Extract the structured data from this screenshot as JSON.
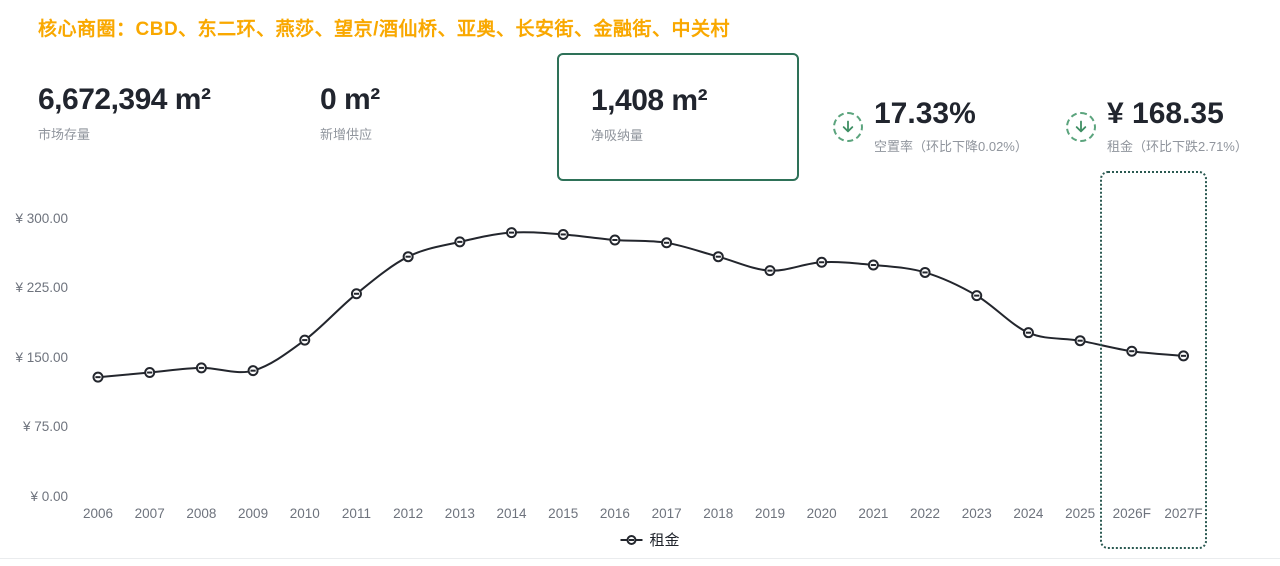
{
  "header": {
    "title": "核心商圈：CBD、东二环、燕莎、望京/酒仙桥、亚奥、长安街、金融街、中关村",
    "accent_color": "#f9a800"
  },
  "kpis": {
    "market_stock": {
      "value": "6,672,394 m²",
      "label": "市场存量"
    },
    "new_supply": {
      "value": "0 m²",
      "label": "新增供应"
    },
    "net_absorption": {
      "value": "1,408 m²",
      "label": "净吸纳量",
      "highlighted": true,
      "highlight_color": "#2e7158"
    },
    "vacancy": {
      "value": "17.33%",
      "label": "空置率（环比下降0.02%）",
      "trend": "down"
    },
    "rent": {
      "value": "¥ 168.35",
      "label": "租金（环比下跌2.71%）",
      "trend": "down"
    }
  },
  "icon_colors": {
    "trend_arrow": "#3e8e63",
    "trend_circle_border": "#5ba47d"
  },
  "chart_data": {
    "type": "line",
    "title": "",
    "categories": [
      "2006",
      "2007",
      "2008",
      "2009",
      "2010",
      "2011",
      "2012",
      "2013",
      "2014",
      "2015",
      "2016",
      "2017",
      "2018",
      "2019",
      "2020",
      "2021",
      "2022",
      "2023",
      "2024",
      "2025",
      "2026F",
      "2027F"
    ],
    "series": [
      {
        "name": "租金",
        "values": [
          129,
          134,
          139,
          136,
          169,
          219,
          259,
          275,
          285,
          283,
          277,
          274,
          259,
          244,
          253,
          250,
          242,
          217,
          177,
          168.35,
          157,
          152
        ],
        "color": "#23262d",
        "smooth": true,
        "marker": "empty-circle"
      }
    ],
    "ylim": [
      0,
      300
    ],
    "ytick_values": [
      0,
      75,
      150,
      225,
      300
    ],
    "ytick_labels": [
      "¥ 0.00",
      "¥ 75.00",
      "¥ 150.00",
      "¥ 225.00",
      "¥ 300.00"
    ],
    "grid": false,
    "legend": {
      "position": "bottom",
      "items": [
        "租金"
      ]
    },
    "forecast": {
      "categories": [
        "2026F",
        "2027F"
      ],
      "outline_color": "#2b5a52",
      "outline_style": "dotted"
    }
  }
}
